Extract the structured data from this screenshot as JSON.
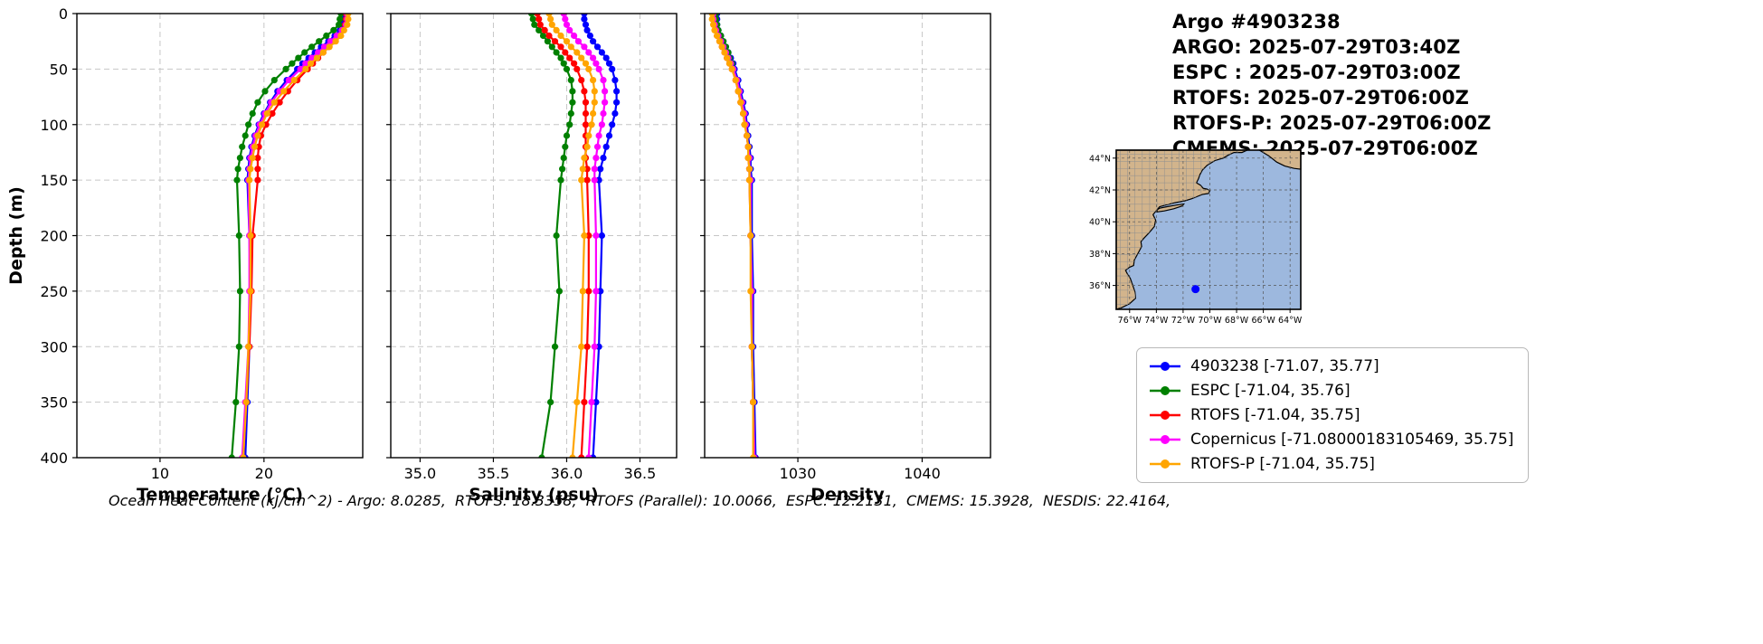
{
  "header": {
    "lines": [
      "Argo #4903238",
      "ARGO: 2025-07-29T03:40Z",
      "ESPC : 2025-07-29T03:00Z",
      "RTOFS: 2025-07-29T06:00Z",
      "RTOFS-P: 2025-07-29T06:00Z",
      "CMEMS: 2025-07-29T06:00Z"
    ]
  },
  "chart_data": {
    "type": "line",
    "description": "Vertical ocean profiles of an Argo float compared with model analyses; depth increases downward; markers on every sample level; light dashed grid on all panels",
    "ylabel": "Depth (m)",
    "ylim": [
      0,
      400
    ],
    "yticks": [
      0,
      50,
      100,
      150,
      200,
      250,
      300,
      350,
      400
    ],
    "depths": [
      0,
      5,
      10,
      15,
      20,
      25,
      30,
      35,
      40,
      45,
      50,
      60,
      70,
      80,
      90,
      100,
      110,
      120,
      130,
      140,
      150,
      200,
      250,
      300,
      350,
      400
    ],
    "series_meta": [
      {
        "name": "4903238",
        "color": "#0000ff"
      },
      {
        "name": "ESPC",
        "color": "#008000"
      },
      {
        "name": "RTOFS",
        "color": "#ff0000"
      },
      {
        "name": "Copernicus",
        "color": "#ff00ff"
      },
      {
        "name": "RTOFS-P",
        "color": "#ffa500"
      }
    ],
    "panels": [
      {
        "xlabel": "Temperature (°C)",
        "xlim": [
          2,
          29.5
        ],
        "xticks": [
          10,
          20
        ],
        "xtick_labels": [
          "10",
          "20"
        ],
        "series": [
          {
            "name": "4903238",
            "values": [
              27.6,
              27.6,
              27.5,
              27.3,
              26.8,
              26.2,
              25.5,
              24.9,
              24.3,
              23.7,
              23.2,
              22.2,
              21.3,
              20.6,
              20.0,
              19.5,
              19.1,
              18.8,
              18.6,
              18.5,
              18.4,
              18.6,
              18.7,
              18.6,
              18.4,
              18.2
            ]
          },
          {
            "name": "ESPC",
            "values": [
              27.4,
              27.3,
              27.2,
              26.7,
              26.0,
              25.3,
              24.6,
              23.9,
              23.3,
              22.7,
              22.1,
              21.0,
              20.1,
              19.4,
              18.9,
              18.5,
              18.2,
              17.9,
              17.7,
              17.5,
              17.4,
              17.6,
              17.7,
              17.6,
              17.3,
              16.9
            ]
          },
          {
            "name": "RTOFS",
            "values": [
              27.9,
              27.9,
              27.8,
              27.5,
              27.2,
              26.7,
              26.2,
              25.7,
              25.2,
              24.7,
              24.2,
              23.2,
              22.3,
              21.5,
              20.8,
              20.2,
              19.7,
              19.5,
              19.4,
              19.4,
              19.4,
              18.9,
              18.8,
              18.6,
              18.3,
              18.0
            ]
          },
          {
            "name": "Copernicus",
            "values": [
              28.0,
              28.0,
              27.9,
              27.5,
              27.0,
              26.4,
              25.8,
              25.2,
              24.6,
              24.0,
              23.5,
              22.4,
              21.5,
              20.7,
              20.1,
              19.6,
              19.2,
              18.9,
              18.7,
              18.6,
              18.5,
              18.6,
              18.6,
              18.5,
              18.2,
              17.9
            ]
          },
          {
            "name": "RTOFS-P",
            "values": [
              28.1,
              28.1,
              28.0,
              27.7,
              27.4,
              26.9,
              26.3,
              25.7,
              25.1,
              24.5,
              24.0,
              22.9,
              21.9,
              21.0,
              20.3,
              19.8,
              19.4,
              19.1,
              18.9,
              18.7,
              18.6,
              18.7,
              18.7,
              18.5,
              18.3,
              18.0
            ]
          }
        ]
      },
      {
        "xlabel": "Salinity (psu)",
        "xlim": [
          34.8,
          36.75
        ],
        "xticks": [
          35.0,
          35.5,
          36.0,
          36.5
        ],
        "xtick_labels": [
          "35.0",
          "35.5",
          "36.0",
          "36.5"
        ],
        "series": [
          {
            "name": "4903238",
            "values": [
              36.12,
              36.12,
              36.13,
              36.14,
              36.16,
              36.18,
              36.21,
              36.24,
              36.27,
              36.29,
              36.31,
              36.33,
              36.34,
              36.34,
              36.33,
              36.31,
              36.29,
              36.27,
              36.25,
              36.23,
              36.22,
              36.24,
              36.23,
              36.22,
              36.2,
              36.18
            ]
          },
          {
            "name": "ESPC",
            "values": [
              35.76,
              35.77,
              35.78,
              35.81,
              35.84,
              35.87,
              35.9,
              35.93,
              35.96,
              35.98,
              36.0,
              36.03,
              36.04,
              36.04,
              36.03,
              36.02,
              36.0,
              35.99,
              35.98,
              35.97,
              35.96,
              35.93,
              35.95,
              35.92,
              35.89,
              35.83
            ]
          },
          {
            "name": "RTOFS",
            "values": [
              35.8,
              35.81,
              35.82,
              35.85,
              35.88,
              35.92,
              35.96,
              35.99,
              36.02,
              36.05,
              36.07,
              36.1,
              36.12,
              36.13,
              36.13,
              36.13,
              36.13,
              36.13,
              36.13,
              36.14,
              36.14,
              36.15,
              36.15,
              36.14,
              36.12,
              36.1
            ]
          },
          {
            "name": "Copernicus",
            "values": [
              35.98,
              35.99,
              36.0,
              36.02,
              36.05,
              36.08,
              36.12,
              36.15,
              36.18,
              36.2,
              36.22,
              36.25,
              36.26,
              36.26,
              36.25,
              36.24,
              36.22,
              36.21,
              36.2,
              36.19,
              36.19,
              36.2,
              36.2,
              36.19,
              36.17,
              36.15
            ]
          },
          {
            "name": "RTOFS-P",
            "values": [
              35.88,
              35.89,
              35.9,
              35.93,
              35.96,
              36.0,
              36.03,
              36.07,
              36.1,
              36.13,
              36.15,
              36.18,
              36.19,
              36.19,
              36.18,
              36.17,
              36.15,
              36.14,
              36.12,
              36.11,
              36.1,
              36.12,
              36.11,
              36.1,
              36.07,
              36.04
            ]
          }
        ]
      },
      {
        "xlabel": "Density",
        "xlim": [
          1022.5,
          1045.5
        ],
        "xticks": [
          1030,
          1040
        ],
        "xtick_labels": [
          "1030",
          "1040"
        ],
        "series": [
          {
            "name": "4903238",
            "values": [
              1023.5,
              1023.5,
              1023.5,
              1023.6,
              1023.8,
              1024.0,
              1024.2,
              1024.4,
              1024.6,
              1024.8,
              1024.9,
              1025.2,
              1025.4,
              1025.6,
              1025.8,
              1025.9,
              1026.0,
              1026.1,
              1026.2,
              1026.2,
              1026.3,
              1026.3,
              1026.4,
              1026.4,
              1026.5,
              1026.6
            ]
          },
          {
            "name": "ESPC",
            "values": [
              1023.4,
              1023.4,
              1023.5,
              1023.6,
              1023.8,
              1024.0,
              1024.2,
              1024.4,
              1024.5,
              1024.7,
              1024.8,
              1025.1,
              1025.3,
              1025.5,
              1025.7,
              1025.8,
              1025.9,
              1026.0,
              1026.1,
              1026.1,
              1026.2,
              1026.2,
              1026.3,
              1026.3,
              1026.4,
              1026.5
            ]
          },
          {
            "name": "RTOFS",
            "values": [
              1023.2,
              1023.2,
              1023.3,
              1023.4,
              1023.5,
              1023.7,
              1023.9,
              1024.1,
              1024.3,
              1024.5,
              1024.7,
              1025.0,
              1025.2,
              1025.4,
              1025.6,
              1025.8,
              1025.9,
              1026.0,
              1026.0,
              1026.1,
              1026.1,
              1026.2,
              1026.3,
              1026.3,
              1026.4,
              1026.5
            ]
          },
          {
            "name": "Copernicus",
            "values": [
              1023.2,
              1023.2,
              1023.3,
              1023.4,
              1023.6,
              1023.8,
              1024.0,
              1024.2,
              1024.4,
              1024.6,
              1024.8,
              1025.1,
              1025.3,
              1025.5,
              1025.7,
              1025.8,
              1025.9,
              1026.0,
              1026.1,
              1026.1,
              1026.2,
              1026.2,
              1026.3,
              1026.3,
              1026.4,
              1026.5
            ]
          },
          {
            "name": "RTOFS-P",
            "values": [
              1023.1,
              1023.1,
              1023.2,
              1023.3,
              1023.5,
              1023.7,
              1023.9,
              1024.1,
              1024.3,
              1024.5,
              1024.7,
              1025.0,
              1025.2,
              1025.4,
              1025.6,
              1025.7,
              1025.9,
              1026.0,
              1026.0,
              1026.1,
              1026.1,
              1026.2,
              1026.2,
              1026.3,
              1026.4,
              1026.4
            ]
          }
        ]
      }
    ]
  },
  "map": {
    "lon_range": [
      -77,
      -63.2
    ],
    "lat_range": [
      34.5,
      44.5
    ],
    "lon_ticks": [
      -76,
      -74,
      -72,
      -70,
      -68,
      -66,
      -64
    ],
    "lon_tick_labels": [
      "76°W",
      "74°W",
      "72°W",
      "70°W",
      "68°W",
      "66°W",
      "64°W"
    ],
    "lat_ticks": [
      36,
      38,
      40,
      42,
      44
    ],
    "lat_tick_labels": [
      "36°N",
      "38°N",
      "40°N",
      "42°N",
      "44°N"
    ],
    "ocean_color": "#9db8de",
    "land_color": "#d2b48c",
    "point": {
      "lon": -71.07,
      "lat": 35.77,
      "color": "#0000ff"
    }
  },
  "legend": {
    "entries": [
      {
        "label": "4903238 [-71.07, 35.77]",
        "color": "#0000ff"
      },
      {
        "label": "ESPC [-71.04, 35.76]",
        "color": "#008000"
      },
      {
        "label": "RTOFS [-71.04, 35.75]",
        "color": "#ff0000"
      },
      {
        "label": "Copernicus [-71.08000183105469, 35.75]",
        "color": "#ff00ff"
      },
      {
        "label": "RTOFS-P [-71.04, 35.75]",
        "color": "#ffa500"
      }
    ]
  },
  "footer": {
    "text": "Ocean Heat Content (kJ/cm^2) - Argo: 8.0285,  RTOFS: 18.3358,  RTOFS (Parallel): 10.0066,  ESPC: 12.2131,  CMEMS: 15.3928,  NESDIS: 22.4164,"
  }
}
